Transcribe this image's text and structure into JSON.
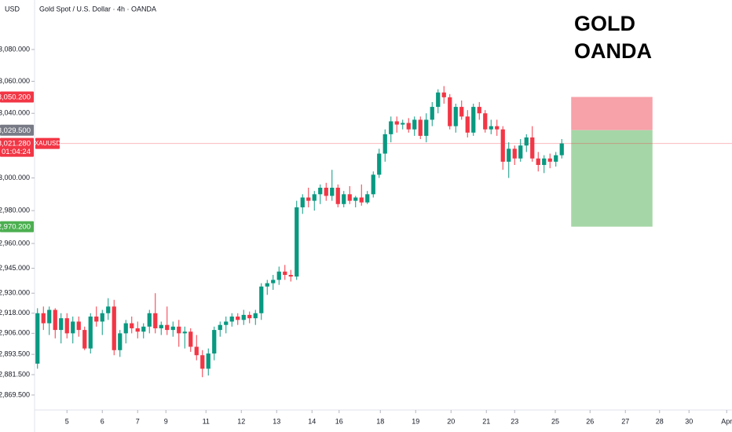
{
  "chart_data": {
    "type": "candlestick",
    "title": "Gold Spot / U.S. Dollar · 4h · OANDA",
    "currency": "USD",
    "watermark": [
      "GOLD",
      "OANDA"
    ],
    "symbol": "XAUUSD",
    "countdown": "01:04:24",
    "log_scale": true,
    "grid": false,
    "up_color": "#089981",
    "down_color": "#f23645",
    "x": [
      0,
      1,
      2,
      3,
      4,
      5,
      6,
      7,
      8,
      9,
      10,
      11,
      12,
      13,
      14,
      15,
      16,
      17,
      18,
      19,
      20,
      21,
      22,
      23,
      24,
      25,
      26,
      27,
      28,
      29,
      30,
      31,
      32,
      33,
      34,
      35,
      36,
      37,
      38,
      39,
      40,
      41,
      42,
      43,
      44,
      45,
      46,
      47,
      48,
      49,
      50,
      51,
      52,
      53,
      54,
      55,
      56,
      57,
      58,
      59,
      60,
      61,
      62,
      63,
      64,
      65,
      66,
      67,
      68,
      69,
      70,
      71,
      72,
      73,
      74,
      75,
      76,
      77,
      78,
      79,
      80,
      81,
      82,
      83,
      84,
      85,
      86,
      87,
      88,
      89
    ],
    "open": [
      2888,
      2918,
      2912,
      2920,
      2908,
      2915,
      2906,
      2913,
      2908,
      2897,
      2916,
      2913,
      2918,
      2922,
      2896,
      2906,
      2912,
      2909,
      2907,
      2910,
      2918,
      2909,
      2911,
      2908,
      2910,
      2906,
      2907,
      2898,
      2893,
      2885,
      2894,
      2908,
      2911,
      2913,
      2916,
      2914,
      2917,
      2915,
      2918,
      2934,
      2936,
      2938,
      2943,
      2941,
      2940,
      2982,
      2988,
      2986,
      2990,
      2994,
      2989,
      2994,
      2984,
      2990,
      2986,
      2988,
      2985,
      2990,
      3002,
      3015,
      3027,
      3035,
      3033,
      3034,
      3030,
      3036,
      3026,
      3036,
      3044,
      3053,
      3050,
      3032,
      3044,
      3038,
      3028,
      3044,
      3040,
      3030,
      3032,
      3030,
      3010,
      3018,
      3012,
      3020,
      3025,
      3012,
      3008,
      3012,
      3010,
      3014
    ],
    "high": [
      2921,
      2922,
      2922,
      2921,
      2918,
      2918,
      2916,
      2916,
      2910,
      2918,
      2922,
      2920,
      2927,
      2926,
      2908,
      2914,
      2916,
      2913,
      2912,
      2920,
      2930,
      2913,
      2922,
      2913,
      2914,
      2910,
      2909,
      2905,
      2896,
      2897,
      2910,
      2913,
      2916,
      2918,
      2918,
      2920,
      2919,
      2920,
      2936,
      2938,
      2941,
      2946,
      2947,
      2944,
      2986,
      2990,
      2994,
      2992,
      2996,
      2997,
      3005,
      2996,
      2992,
      2995,
      2989,
      2996,
      2992,
      3004,
      3018,
      3030,
      3038,
      3038,
      3036,
      3037,
      3038,
      3038,
      3040,
      3047,
      3055,
      3057,
      3052,
      3046,
      3048,
      3042,
      3046,
      3047,
      3042,
      3036,
      3036,
      3032,
      3022,
      3020,
      3024,
      3027,
      3032,
      3016,
      3014,
      3015,
      3016,
      3024
    ],
    "low": [
      2885,
      2908,
      2905,
      2903,
      2900,
      2903,
      2900,
      2904,
      2896,
      2894,
      2910,
      2905,
      2914,
      2893,
      2892,
      2900,
      2906,
      2903,
      2903,
      2906,
      2906,
      2905,
      2905,
      2904,
      2898,
      2897,
      2895,
      2890,
      2880,
      2881,
      2890,
      2904,
      2906,
      2910,
      2911,
      2911,
      2912,
      2911,
      2914,
      2929,
      2932,
      2935,
      2938,
      2937,
      2938,
      2978,
      2982,
      2980,
      2984,
      2986,
      2986,
      2982,
      2982,
      2984,
      2982,
      2983,
      2984,
      2988,
      3000,
      3010,
      3022,
      3028,
      3030,
      3028,
      3026,
      3024,
      3022,
      3032,
      3040,
      3046,
      3030,
      3028,
      3036,
      3025,
      3026,
      3036,
      3028,
      3027,
      3026,
      3005,
      3000,
      3008,
      3010,
      3016,
      3010,
      3004,
      3003,
      3006,
      3007,
      3012
    ],
    "close": [
      2918,
      2912,
      2920,
      2908,
      2915,
      2906,
      2913,
      2908,
      2897,
      2916,
      2913,
      2918,
      2922,
      2896,
      2906,
      2912,
      2909,
      2907,
      2910,
      2918,
      2909,
      2911,
      2908,
      2910,
      2906,
      2907,
      2898,
      2893,
      2885,
      2894,
      2908,
      2911,
      2913,
      2916,
      2914,
      2917,
      2915,
      2918,
      2934,
      2936,
      2938,
      2943,
      2941,
      2940,
      2982,
      2988,
      2986,
      2990,
      2994,
      2989,
      2994,
      2984,
      2990,
      2986,
      2988,
      2985,
      2990,
      3002,
      3015,
      3027,
      3035,
      3033,
      3034,
      3030,
      3036,
      3026,
      3036,
      3044,
      3053,
      3050,
      3032,
      3044,
      3038,
      3028,
      3044,
      3040,
      3030,
      3032,
      3030,
      3010,
      3018,
      3012,
      3020,
      3025,
      3012,
      3008,
      3012,
      3010,
      3014,
      3021.28
    ],
    "last_price": {
      "value": 3021.28,
      "label": "3,021.280",
      "color": "#f23645"
    },
    "position": {
      "x_start": 90.6,
      "x_end": 104.4,
      "target": {
        "value": 3050.2,
        "label": "3,050.200",
        "color": "#f23645",
        "fill": "#f7a1a8"
      },
      "entry": {
        "value": 3029.5,
        "label": "3,029.500",
        "color": "#787b86"
      },
      "stop": {
        "value": 2970.2,
        "label": "2,970.200",
        "color": "#4caf50",
        "fill": "#a5d6a7"
      }
    },
    "xlim": [
      -0.5,
      117.9
    ],
    "xticks": [
      {
        "value": 5.0,
        "label": "5"
      },
      {
        "value": 11.0,
        "label": "6"
      },
      {
        "value": 17.0,
        "label": "7"
      },
      {
        "value": 21.8,
        "label": "9"
      },
      {
        "value": 28.6,
        "label": "11"
      },
      {
        "value": 34.6,
        "label": "12"
      },
      {
        "value": 40.6,
        "label": "13"
      },
      {
        "value": 46.6,
        "label": "14"
      },
      {
        "value": 51.2,
        "label": "16"
      },
      {
        "value": 58.2,
        "label": "18"
      },
      {
        "value": 64.2,
        "label": "19"
      },
      {
        "value": 70.2,
        "label": "20"
      },
      {
        "value": 76.2,
        "label": "21"
      },
      {
        "value": 81.0,
        "label": "23"
      },
      {
        "value": 87.9,
        "label": "25"
      },
      {
        "value": 93.8,
        "label": "26"
      },
      {
        "value": 99.8,
        "label": "27"
      },
      {
        "value": 105.6,
        "label": "28"
      },
      {
        "value": 110.6,
        "label": "30"
      },
      {
        "value": 117.0,
        "label": "Apr"
      }
    ],
    "ylim": [
      2860.7,
      3111.4
    ],
    "yticks": [
      {
        "value": 3080,
        "label": "3,080.000"
      },
      {
        "value": 3060,
        "label": "3,060.000"
      },
      {
        "value": 3040,
        "label": "3,040.000"
      },
      {
        "value": 3000,
        "label": "3,000.000"
      },
      {
        "value": 2980,
        "label": "2,980.000"
      },
      {
        "value": 2960,
        "label": "2,960.000"
      },
      {
        "value": 2945,
        "label": "2,945.000"
      },
      {
        "value": 2930,
        "label": "2,930.000"
      },
      {
        "value": 2918,
        "label": "2,918.000"
      },
      {
        "value": 2906,
        "label": "2,906.000"
      },
      {
        "value": 2893.5,
        "label": "2,893.500"
      },
      {
        "value": 2881.5,
        "label": "2,881.500"
      },
      {
        "value": 2869.5,
        "label": "2,869.500"
      }
    ]
  }
}
